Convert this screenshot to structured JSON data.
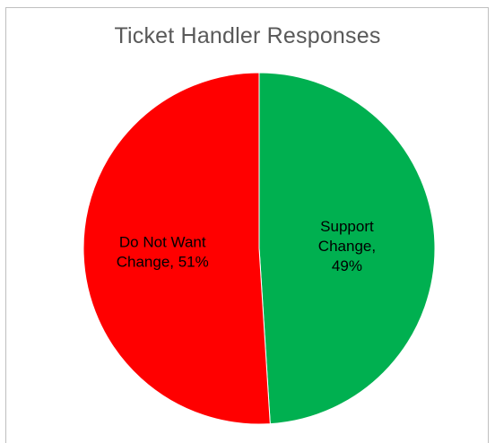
{
  "chart_data": {
    "type": "pie",
    "title": "Ticket Handler Responses",
    "slices": [
      {
        "label": "Support Change",
        "value": 49,
        "percent_label": "49%",
        "color": "#00b050",
        "label_lines": [
          "Support",
          "Change,",
          "49%"
        ]
      },
      {
        "label": "Do Not Want Change",
        "value": 51,
        "percent_label": "51%",
        "color": "#ff0000",
        "label_lines": [
          "Do Not Want",
          "Change, 51%"
        ]
      }
    ],
    "start_angle": "12 o'clock",
    "direction": "clockwise",
    "legend": "none",
    "data_labels": "inside"
  },
  "colors": {
    "border": "#bfbfbf",
    "title": "#595959",
    "background": "#ffffff"
  }
}
